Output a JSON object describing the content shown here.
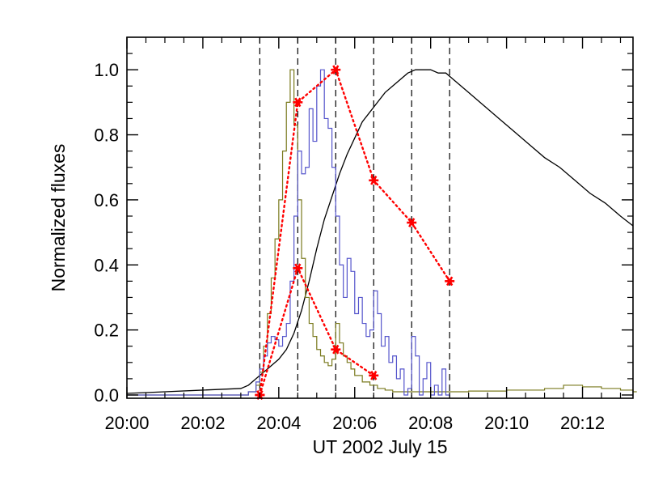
{
  "chart_data": {
    "type": "line",
    "xlabel": "UT 2002 July 15",
    "ylabel": "Normalized fluxes",
    "xlim": [
      0,
      13.33
    ],
    "ylim": [
      -0.01,
      1.1
    ],
    "x_ticks": [
      0,
      2,
      4,
      6,
      8,
      10,
      12
    ],
    "x_tick_labels": [
      "20:00",
      "20:02",
      "20:04",
      "20:06",
      "20:08",
      "20:10",
      "20:12"
    ],
    "y_ticks": [
      0.0,
      0.2,
      0.4,
      0.6,
      0.8,
      1.0
    ],
    "y_tick_labels": [
      "0.0",
      "0.2",
      "0.4",
      "0.6",
      "0.8",
      "1.0"
    ],
    "vertical_lines_x": [
      3.5,
      4.5,
      5.5,
      6.5,
      7.5,
      8.5
    ],
    "grid": false,
    "colors": {
      "black_curve": "#000000",
      "olive_curve": "#7a7a1e",
      "blue_curve": "#5555cc",
      "markers": "#ff0000",
      "dashed": "#000000"
    },
    "series": [
      {
        "style": "line",
        "color_key": "black_curve",
        "x": [
          0,
          1,
          2,
          3.0,
          3.2,
          3.4,
          3.6,
          3.8,
          4.0,
          4.2,
          4.4,
          4.6,
          4.8,
          5.0,
          5.2,
          5.4,
          5.6,
          5.8,
          6.0,
          6.2,
          6.4,
          6.6,
          6.8,
          7.0,
          7.2,
          7.4,
          7.6,
          7.8,
          8.0,
          8.2,
          8.4,
          8.6,
          8.8,
          9.0,
          9.4,
          9.8,
          10.2,
          10.6,
          11.0,
          11.4,
          11.8,
          12.2,
          12.6,
          13.0,
          13.33
        ],
        "values": [
          0.005,
          0.01,
          0.015,
          0.02,
          0.03,
          0.05,
          0.07,
          0.09,
          0.11,
          0.14,
          0.19,
          0.26,
          0.35,
          0.45,
          0.54,
          0.61,
          0.68,
          0.74,
          0.79,
          0.84,
          0.87,
          0.9,
          0.93,
          0.95,
          0.97,
          0.99,
          1.0,
          1.0,
          1.0,
          0.99,
          0.99,
          0.97,
          0.95,
          0.93,
          0.89,
          0.85,
          0.81,
          0.77,
          0.73,
          0.7,
          0.66,
          0.62,
          0.59,
          0.55,
          0.52
        ]
      },
      {
        "style": "step",
        "color_key": "olive_curve",
        "x": [
          0,
          3.0,
          3.2,
          3.4,
          3.5,
          3.6,
          3.7,
          3.8,
          3.9,
          4.0,
          4.1,
          4.2,
          4.3,
          4.4,
          4.5,
          4.6,
          4.7,
          4.8,
          4.9,
          5.0,
          5.1,
          5.2,
          5.3,
          5.4,
          5.5,
          5.6,
          5.7,
          5.8,
          5.9,
          6.0,
          6.2,
          6.4,
          6.6,
          6.8,
          7.0,
          8.0,
          9.0,
          10.0,
          11.0,
          11.5,
          12.0,
          12.5,
          13.0,
          13.33
        ],
        "values": [
          0.0,
          0.0,
          0.01,
          0.03,
          0.07,
          0.15,
          0.25,
          0.36,
          0.48,
          0.6,
          0.75,
          0.9,
          1.0,
          0.83,
          0.6,
          0.42,
          0.3,
          0.22,
          0.18,
          0.14,
          0.12,
          0.1,
          0.09,
          0.11,
          0.22,
          0.16,
          0.12,
          0.1,
          0.08,
          0.06,
          0.04,
          0.03,
          0.02,
          0.015,
          0.01,
          0.01,
          0.012,
          0.015,
          0.02,
          0.03,
          0.025,
          0.02,
          0.015,
          0.01
        ]
      },
      {
        "style": "step",
        "color_key": "blue_curve",
        "x": [
          0,
          3.0,
          3.2,
          3.4,
          3.5,
          3.6,
          3.7,
          3.8,
          3.9,
          4.0,
          4.1,
          4.2,
          4.3,
          4.4,
          4.5,
          4.6,
          4.7,
          4.8,
          4.9,
          5.0,
          5.1,
          5.2,
          5.3,
          5.4,
          5.5,
          5.6,
          5.7,
          5.8,
          5.9,
          6.0,
          6.1,
          6.2,
          6.3,
          6.4,
          6.5,
          6.6,
          6.7,
          6.8,
          6.9,
          7.0,
          7.1,
          7.2,
          7.3,
          7.4,
          7.5,
          7.6,
          7.7,
          7.8,
          7.9,
          8.0,
          8.1,
          8.2,
          8.3,
          8.4
        ],
        "values": [
          0.0,
          0.0,
          0.01,
          0.04,
          0.08,
          0.12,
          0.16,
          0.18,
          0.17,
          0.15,
          0.18,
          0.22,
          0.35,
          0.55,
          0.75,
          0.68,
          0.7,
          0.88,
          0.78,
          0.95,
          1.0,
          0.85,
          0.82,
          0.7,
          0.55,
          0.4,
          0.3,
          0.42,
          0.38,
          0.25,
          0.3,
          0.22,
          0.18,
          0.2,
          0.32,
          0.25,
          0.15,
          0.18,
          0.1,
          0.12,
          0.05,
          0.08,
          0.0,
          0.02,
          0.18,
          0.12,
          0.0,
          0.05,
          0.1,
          0.0,
          0.03,
          0.0,
          0.08,
          0.0
        ]
      },
      {
        "style": "dotted-markers",
        "color_key": "markers",
        "x": [
          3.5,
          4.5,
          5.5,
          6.5,
          7.5,
          8.5
        ],
        "values": [
          0.0,
          0.9,
          1.0,
          0.66,
          0.53,
          0.35
        ]
      },
      {
        "style": "dotted-markers",
        "color_key": "markers",
        "x": [
          3.5,
          4.5,
          5.5,
          6.5
        ],
        "values": [
          0.0,
          0.39,
          0.14,
          0.06
        ]
      }
    ]
  }
}
